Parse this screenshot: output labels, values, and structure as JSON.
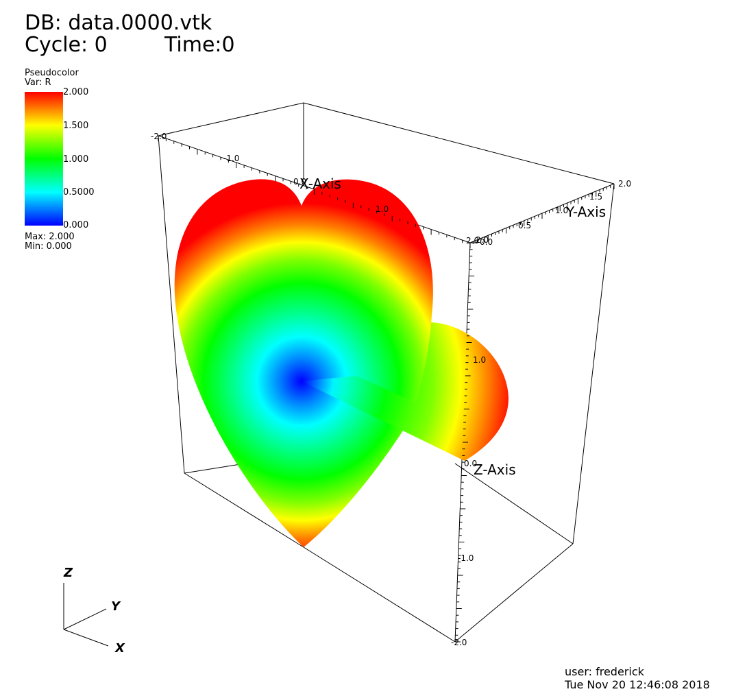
{
  "header": {
    "db_line": "DB: data.0000.vtk",
    "cycle_label": "Cycle: 0",
    "time_label": "Time:0"
  },
  "legend": {
    "plot_type": "Pseudocolor",
    "var_label": "Var: R",
    "ticks": [
      "2.000",
      "1.500",
      "1.000",
      "0.5000",
      "0.000"
    ],
    "max_label": "Max: 2.000",
    "min_label": "Min: 0.000",
    "colormap": [
      "#ff0000",
      "#ffff00",
      "#00ff00",
      "#00ffff",
      "#0000ff"
    ]
  },
  "axes": {
    "x_title": "X-Axis",
    "y_title": "Y-Axis",
    "z_title": "Z-Axis",
    "x_ticks": [
      "-2.0",
      "-1.0",
      "0.0",
      "1.0",
      "2.0"
    ],
    "y_ticks": [
      "2.0",
      "1.5",
      "1.0",
      "0.5",
      "0.0"
    ],
    "z_ticks": [
      "2.0",
      "1.0",
      "0.0",
      "-1.0",
      "-2.0"
    ]
  },
  "triad": {
    "z": "Z",
    "y": "Y",
    "x": "X"
  },
  "footer": {
    "user": "user: frederick",
    "date": "Tue Nov 20 12:46:08 2018"
  }
}
